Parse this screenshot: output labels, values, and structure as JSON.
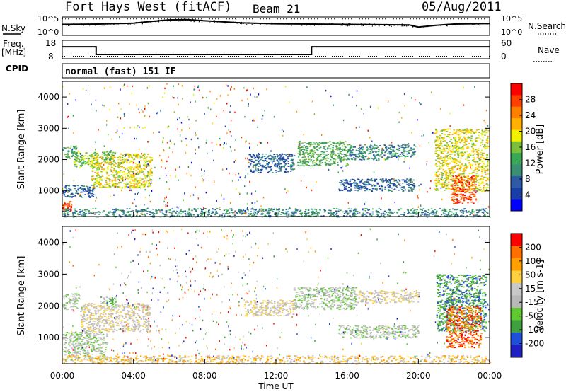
{
  "header": {
    "radar": "Fort Hays West (fitACF)",
    "beam": "Beam 21",
    "date": "05/Aug/2011"
  },
  "top_panels": {
    "nsky_label": "N.Sky",
    "nsearch_label": "N.Search",
    "noise_ticks": [
      "10^5",
      "10^0"
    ],
    "freq_label": "Freq.",
    "freq_unit": "[MHz]",
    "freq_ticks": [
      "18",
      "8"
    ],
    "nave_ticks": [
      "60",
      "0"
    ],
    "nave_label": "Nave",
    "cpid_label": "CPID",
    "cpid_value": "normal (fast) 151 IF"
  },
  "colors": {
    "power": [
      "#0000ff",
      "#1a3ea8",
      "#2f5aa6",
      "#3a8f72",
      "#3aa856",
      "#7cbf3a",
      "#f0f000",
      "#ffb000",
      "#ff8000",
      "#ff4000",
      "#ff0000"
    ],
    "velocity": [
      "#2020c0",
      "#2050d8",
      "#40a040",
      "#60c830",
      "#b8b8b8",
      "#c8c8c8",
      "#ffd040",
      "#ffa000",
      "#ff7000",
      "#ff0000"
    ]
  },
  "chart_data": [
    {
      "type": "line",
      "name": "noise",
      "x_range": [
        0,
        24
      ],
      "series": [
        {
          "name": "N.Sky",
          "x": [
            0,
            2,
            4,
            5,
            6,
            7,
            8,
            10,
            12,
            14,
            16,
            18,
            19.5,
            20,
            21,
            22,
            24
          ],
          "y": [
            3.2,
            3.3,
            3.6,
            4.2,
            4.7,
            4.8,
            4.4,
            3.7,
            3.4,
            3.3,
            3.2,
            3.1,
            3.0,
            2.3,
            2.9,
            3.3,
            3.5
          ]
        },
        {
          "name": "N.Search",
          "x": [
            0,
            6,
            12,
            18,
            24
          ],
          "y": [
            5.0,
            5.0,
            5.0,
            5.0,
            5.0
          ]
        }
      ]
    },
    {
      "type": "line",
      "name": "frequency-nave",
      "x_range": [
        0,
        24
      ],
      "series": [
        {
          "name": "Freq.",
          "x": [
            0,
            1.9,
            1.9,
            14.0,
            14.0,
            24
          ],
          "y": [
            14.5,
            14.5,
            10.3,
            10.3,
            14.5,
            14.5
          ]
        },
        {
          "name": "Nave",
          "x": [
            0,
            6,
            12,
            18,
            24
          ],
          "y": [
            8,
            8,
            8,
            8,
            8
          ]
        }
      ]
    },
    {
      "type": "heatmap",
      "title": "Power",
      "xlabel": "Time UT",
      "ylabel": "Slant Range [km]",
      "colorbar_label": "Power [dB]",
      "colorbar_ticks": [
        "28",
        "24",
        "20",
        "16",
        "12",
        "8",
        "4"
      ],
      "xlim": [
        0,
        24
      ],
      "ylim": [
        180,
        4500
      ],
      "yticks": [
        "1000",
        "2000",
        "3000",
        "4000"
      ],
      "regions": [
        {
          "t": [
            0.0,
            0.8
          ],
          "r": [
            2050,
            2450
          ],
          "level": 4
        },
        {
          "t": [
            0.6,
            2.0
          ],
          "r": [
            1750,
            2250
          ],
          "level": 5
        },
        {
          "t": [
            0.0,
            1.8
          ],
          "r": [
            800,
            1200
          ],
          "level": 2
        },
        {
          "t": [
            1.6,
            5.0
          ],
          "r": [
            1100,
            2200
          ],
          "level": 6
        },
        {
          "t": [
            2.2,
            3.0
          ],
          "r": [
            2000,
            2300
          ],
          "level": 4
        },
        {
          "t": [
            0.0,
            0.5
          ],
          "r": [
            350,
            700
          ],
          "level": 9
        },
        {
          "t": [
            10.4,
            13.0
          ],
          "r": [
            1600,
            2200
          ],
          "level": 2
        },
        {
          "t": [
            13.2,
            16.0
          ],
          "r": [
            1800,
            2600
          ],
          "level": 4
        },
        {
          "t": [
            16.0,
            18.5
          ],
          "r": [
            2000,
            2500
          ],
          "level": 3
        },
        {
          "t": [
            18.5,
            19.8
          ],
          "r": [
            2100,
            2500
          ],
          "level": 3
        },
        {
          "t": [
            15.5,
            19.8
          ],
          "r": [
            1000,
            1400
          ],
          "level": 2
        },
        {
          "t": [
            20.9,
            23.9
          ],
          "r": [
            1000,
            3000
          ],
          "level": 6
        },
        {
          "t": [
            21.8,
            23.2
          ],
          "r": [
            600,
            1500
          ],
          "level": 9
        },
        {
          "t": [
            0.0,
            24.0
          ],
          "r": [
            180,
            450
          ],
          "level": 3
        }
      ]
    },
    {
      "type": "heatmap",
      "title": "Velocity",
      "xlabel": "Time UT",
      "ylabel": "Slant Range [km]",
      "colorbar_label": "Velocity [m s-1]",
      "colorbar_ticks": [
        "200",
        "100",
        "50",
        "15",
        "-15",
        "-50",
        "-100",
        "-200"
      ],
      "xlim": [
        0,
        24
      ],
      "ylim": [
        180,
        4500
      ],
      "yticks": [
        "1000",
        "2000",
        "3000",
        "4000"
      ],
      "xticks": [
        "00:00",
        "04:00",
        "08:00",
        "12:00",
        "16:00",
        "20:00",
        "00:00"
      ],
      "regions": [
        {
          "t": [
            0.0,
            1.0
          ],
          "r": [
            1900,
            2400
          ],
          "level": 4
        },
        {
          "t": [
            1.0,
            4.9
          ],
          "r": [
            1200,
            2100
          ],
          "level": 5
        },
        {
          "t": [
            0.0,
            2.5
          ],
          "r": [
            300,
            1200
          ],
          "level": 4
        },
        {
          "t": [
            2.1,
            3.0
          ],
          "r": [
            2000,
            2300
          ],
          "level": 3
        },
        {
          "t": [
            10.2,
            13.0
          ],
          "r": [
            1700,
            2200
          ],
          "level": 5
        },
        {
          "t": [
            13.0,
            16.5
          ],
          "r": [
            1900,
            2600
          ],
          "level": 4
        },
        {
          "t": [
            16.5,
            20.0
          ],
          "r": [
            2100,
            2500
          ],
          "level": 5
        },
        {
          "t": [
            15.5,
            20.0
          ],
          "r": [
            1000,
            1400
          ],
          "level": 4
        },
        {
          "t": [
            21.0,
            23.8
          ],
          "r": [
            1200,
            3000
          ],
          "level": 2
        },
        {
          "t": [
            21.5,
            23.5
          ],
          "r": [
            700,
            2000
          ],
          "level": 8
        },
        {
          "t": [
            0.0,
            24.0
          ],
          "r": [
            180,
            450
          ],
          "level": 6
        }
      ]
    }
  ]
}
